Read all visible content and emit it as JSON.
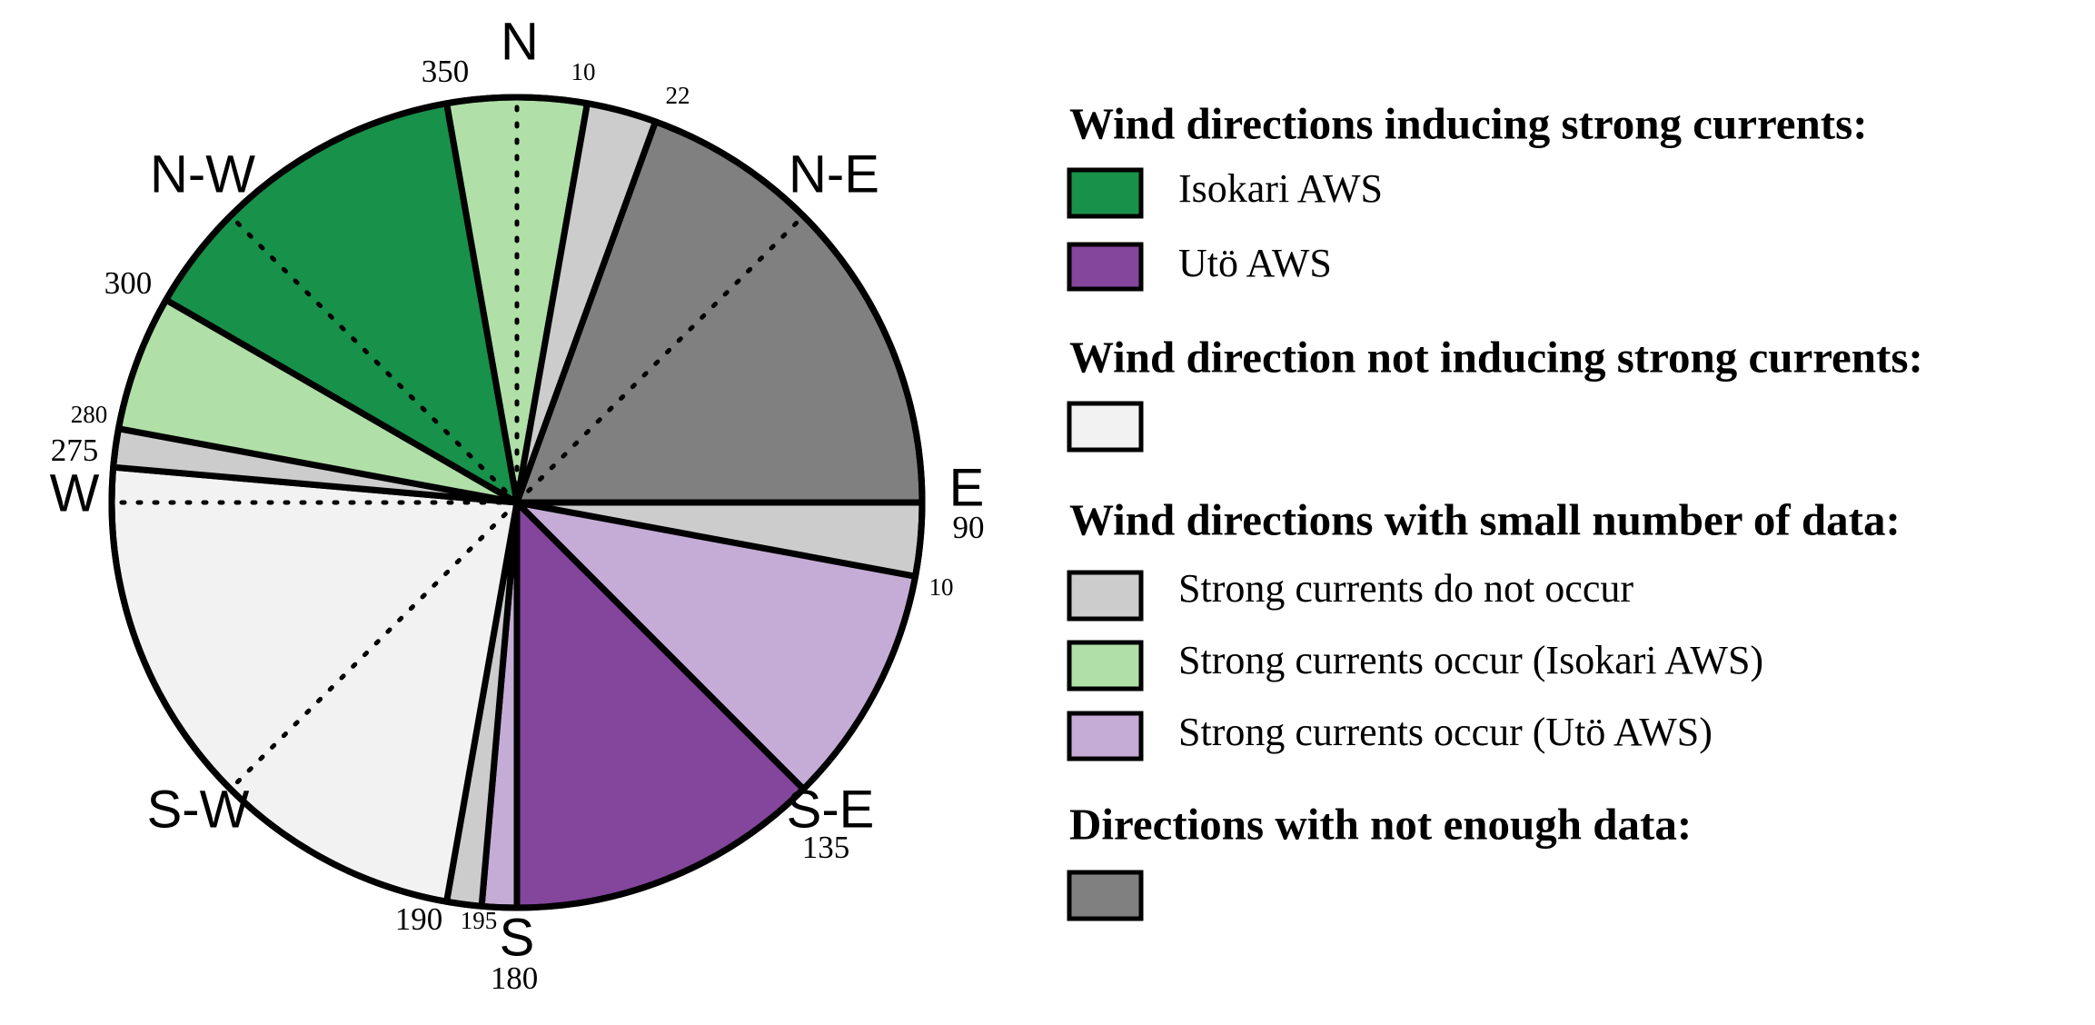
{
  "compass": {
    "n": "N",
    "ne": "N-E",
    "e": "E",
    "se": "S-E",
    "s": "S",
    "sw": "S-W",
    "w": "W",
    "nw": "N-W"
  },
  "angle_labels": [
    "350",
    "10",
    "22",
    "90",
    "10",
    "135",
    "180",
    "195",
    "190",
    "275",
    "280",
    "300"
  ],
  "legend": {
    "strong": {
      "heading": "Wind directions inducing strong currents:",
      "items": [
        "Isokari AWS",
        "Utö AWS"
      ]
    },
    "not_strong": {
      "heading": "Wind direction not inducing strong currents:"
    },
    "small": {
      "heading": "Wind directions with small number of data:",
      "items": [
        "Strong currents do not occur",
        "Strong currents occur  (Isokari AWS)",
        "Strong currents occur  (Utö AWS)"
      ]
    },
    "not_enough": {
      "heading": "Directions with not enough data:"
    }
  }
}
